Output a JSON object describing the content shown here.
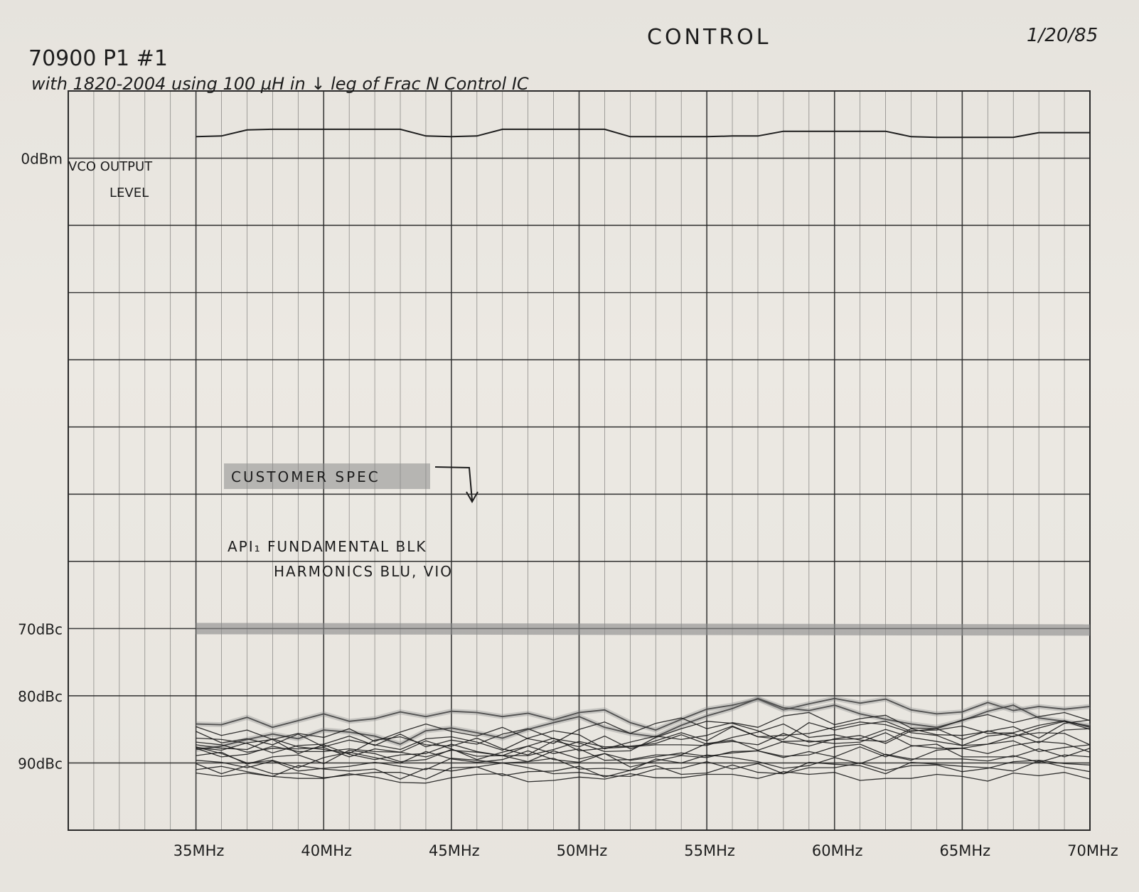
{
  "header": {
    "project": "70900 P1 #1",
    "note": "with 1820-2004 using 100 µH in ↓ leg of Frac N Control IC",
    "section": "CONTROL",
    "date": "1/20/85"
  },
  "annotations": {
    "vco_label_1": "VCO OUTPUT",
    "vco_label_2": "LEVEL",
    "spec_label": "CUSTOMER SPEC",
    "legend_1": "API₁ FUNDAMENTAL BLK",
    "legend_2": "HARMONICS BLU, VIO"
  },
  "colors": {
    "ink": "#1d1d1d",
    "grid": "#2a2a2a",
    "highlighter": "#8a8a8a",
    "paper": "#ebe8e2"
  },
  "chart_data": {
    "type": "line",
    "xlabel": "",
    "ylabel": "",
    "x": [
      35,
      36,
      37,
      38,
      39,
      40,
      41,
      42,
      43,
      44,
      45,
      46,
      47,
      48,
      49,
      50,
      51,
      52,
      53,
      54,
      55,
      56,
      57,
      58,
      59,
      60,
      61,
      62,
      63,
      64,
      65,
      66,
      67,
      68,
      69,
      70
    ],
    "xlim": [
      30,
      70
    ],
    "x_ticks": [
      {
        "value": 35,
        "label": "35MHz"
      },
      {
        "value": 40,
        "label": "40MHz"
      },
      {
        "value": 45,
        "label": "45MHz"
      },
      {
        "value": 50,
        "label": "50MHz"
      },
      {
        "value": 55,
        "label": "55MHz"
      },
      {
        "value": 60,
        "label": "60MHz"
      },
      {
        "value": 65,
        "label": "65MHz"
      },
      {
        "value": 70,
        "label": "70MHz"
      }
    ],
    "ylim": [
      -100,
      10
    ],
    "y_ticks": [
      {
        "value": 0,
        "label": "0dBm"
      },
      {
        "value": -70,
        "label": "70dBc"
      },
      {
        "value": -80,
        "label": "80dBc"
      },
      {
        "value": -90,
        "label": "90dBc"
      }
    ],
    "grid": true,
    "vco_output_level": {
      "x": [
        35,
        36,
        37,
        38,
        39,
        40,
        41,
        42,
        43,
        44,
        45,
        46,
        47,
        48,
        49,
        50,
        51,
        52,
        53,
        54,
        55,
        56,
        57,
        58,
        59,
        60,
        61,
        62,
        63,
        64,
        65,
        66,
        67,
        68,
        69,
        70
      ],
      "values": [
        3.2,
        3.3,
        4.2,
        4.3,
        4.3,
        4.3,
        4.3,
        4.3,
        4.3,
        3.3,
        3.2,
        3.3,
        4.3,
        4.3,
        4.3,
        4.3,
        4.3,
        3.2,
        3.2,
        3.2,
        3.2,
        3.3,
        3.3,
        4.0,
        4.0,
        4.0,
        4.0,
        4.0,
        3.2,
        3.1,
        3.1,
        3.1,
        3.1,
        3.8,
        3.8,
        3.8
      ]
    },
    "customer_spec": {
      "value": -70,
      "x": [
        35,
        70
      ]
    },
    "series": [
      {
        "values": [
          -84.2,
          -84.3,
          -83.2,
          -84.7,
          -83.7,
          -82.7,
          -83.8,
          -83.4,
          -82.4,
          -83.1,
          -82.3,
          -82.5,
          -83.1,
          -82.6,
          -83.6,
          -82.5,
          -82.1,
          -84.0,
          -85.1,
          -83.5,
          -82.0,
          -81.4,
          -80.5,
          -82.1,
          -81.2,
          -80.4,
          -81.1,
          -80.5,
          -82.1,
          -82.7,
          -82.4,
          -81.0,
          -82.2,
          -81.6,
          -82.0,
          -81.6
        ]
      },
      {
        "values": [
          -88.0,
          -87.5,
          -86.5,
          -85.7,
          -86.4,
          -85.1,
          -85.4,
          -86.0,
          -87.2,
          -85.2,
          -84.8,
          -85.5,
          -86.3,
          -85.0,
          -84.0,
          -83.1,
          -84.7,
          -85.6,
          -86.1,
          -84.4,
          -83.0,
          -81.9,
          -80.4,
          -81.8,
          -82.2,
          -81.4,
          -82.7,
          -83.5,
          -84.2,
          -84.7,
          -83.7,
          -82.3,
          -81.4,
          -83.3,
          -83.8,
          -84.5
        ]
      },
      {
        "values": [
          -86.3,
          -86.5,
          -87.1,
          -88.5,
          -87.4,
          -87.2,
          -86.0,
          -87.4,
          -85.7,
          -87.6,
          -86.6,
          -87.2,
          -85.7,
          -84.9,
          -86.4,
          -87.0,
          -88.3,
          -88.2,
          -86.2,
          -84.9,
          -83.8,
          -84.1,
          -85.2,
          -86.9,
          -87.5,
          -86.4,
          -85.9,
          -87.1,
          -85.2,
          -85.1,
          -84.5,
          -85.6,
          -85.5,
          -84.4,
          -83.7,
          -84.7
        ]
      },
      {
        "values": [
          -87.3,
          -87.8,
          -88.0,
          -86.4,
          -87.6,
          -88.0,
          -88.6,
          -86.6,
          -86.1,
          -87.3,
          -87.5,
          -86.3,
          -87.9,
          -88.8,
          -86.7,
          -87.6,
          -86.0,
          -87.9,
          -86.7,
          -85.5,
          -86.7,
          -84.6,
          -86.1,
          -85.9,
          -85.6,
          -84.7,
          -83.9,
          -84.3,
          -85.5,
          -85.9,
          -87.4,
          -87.2,
          -86.0,
          -85.5,
          -85.6,
          -87.3
        ]
      },
      {
        "values": [
          -87.7,
          -88.1,
          -87.0,
          -86.5,
          -88.6,
          -87.3,
          -88.7,
          -89.5,
          -88.8,
          -88.6,
          -87.2,
          -88.3,
          -88.9,
          -88.9,
          -88.0,
          -86.8,
          -87.6,
          -87.5,
          -87.1,
          -85.8,
          -87.2,
          -86.8,
          -87.3,
          -85.6,
          -86.9,
          -86.5,
          -86.4,
          -85.0,
          -86.2,
          -86.8,
          -87.4,
          -86.0,
          -85.6,
          -87.0,
          -85.1,
          -84.9
        ]
      },
      {
        "values": [
          -87.8,
          -89.1,
          -88.7,
          -87.5,
          -88.3,
          -88.3,
          -87.9,
          -88.3,
          -88.4,
          -89.1,
          -88.1,
          -88.4,
          -88.9,
          -87.5,
          -88.6,
          -87.9,
          -89.6,
          -89.5,
          -88.8,
          -88.8,
          -87.1,
          -86.6,
          -88.1,
          -86.8,
          -86.7,
          -87.1,
          -86.9,
          -85.5,
          -87.4,
          -87.8,
          -87.8,
          -87.2,
          -86.7,
          -88.3,
          -87.7,
          -87.3
        ]
      },
      {
        "values": [
          -88.9,
          -88.4,
          -90.2,
          -89.1,
          -88.8,
          -90.1,
          -88.1,
          -88.6,
          -89.8,
          -89.5,
          -88.0,
          -89.0,
          -88.9,
          -89.8,
          -88.2,
          -89.4,
          -88.6,
          -89.6,
          -89.1,
          -88.5,
          -89.0,
          -88.5,
          -88.2,
          -89.2,
          -88.3,
          -89.1,
          -87.6,
          -89.1,
          -87.5,
          -87.2,
          -89.1,
          -89.1,
          -89.1,
          -87.9,
          -89.1,
          -87.8
        ]
      },
      {
        "values": [
          -89.6,
          -89.9,
          -90.7,
          -89.7,
          -91.2,
          -90.8,
          -90.5,
          -89.9,
          -90.5,
          -91.0,
          -89.3,
          -89.6,
          -90.0,
          -89.8,
          -89.3,
          -90.9,
          -90.8,
          -91.1,
          -89.4,
          -90.0,
          -88.8,
          -89.2,
          -89.8,
          -90.8,
          -90.4,
          -89.2,
          -90.1,
          -88.7,
          -89.4,
          -89.4,
          -89.4,
          -89.7,
          -88.9,
          -89.9,
          -88.8,
          -89.1
        ]
      },
      {
        "values": [
          -91.0,
          -90.5,
          -91.3,
          -92.0,
          -90.4,
          -90.9,
          -91.2,
          -90.9,
          -92.4,
          -90.8,
          -91.2,
          -90.6,
          -90.0,
          -90.7,
          -91.6,
          -91.4,
          -91.9,
          -92.0,
          -90.9,
          -90.8,
          -89.8,
          -90.9,
          -90.1,
          -91.6,
          -89.9,
          -90.2,
          -90.4,
          -91.6,
          -89.9,
          -90.2,
          -90.5,
          -90.7,
          -91.2,
          -89.7,
          -90.6,
          -91.3
        ]
      },
      {
        "values": [
          -91.5,
          -92.0,
          -91.5,
          -92.0,
          -92.3,
          -92.3,
          -91.6,
          -92.1,
          -92.9,
          -93.0,
          -92.2,
          -91.7,
          -91.6,
          -92.8,
          -92.6,
          -92.1,
          -92.4,
          -91.6,
          -92.2,
          -92.2,
          -91.7,
          -91.7,
          -92.3,
          -91.3,
          -91.7,
          -91.4,
          -92.6,
          -92.3,
          -92.3,
          -91.7,
          -92.0,
          -92.7,
          -91.5,
          -91.9,
          -91.4,
          -92.4
        ]
      },
      {
        "values": [
          -84.6,
          -85.9,
          -85.1,
          -86.5,
          -85.6,
          -86.2,
          -84.9,
          -86.8,
          -85.4,
          -84.2,
          -85.3,
          -86.0,
          -84.7,
          -86.4,
          -87.1,
          -85.0,
          -83.9,
          -85.6,
          -84.1,
          -83.3,
          -84.9,
          -84.0,
          -84.7,
          -83.0,
          -82.5,
          -84.3,
          -83.4,
          -82.9,
          -84.8,
          -84.9,
          -83.6,
          -82.8,
          -84.0,
          -83.1,
          -82.5,
          -83.7
        ]
      },
      {
        "values": [
          -86.9,
          -87.3,
          -88.4,
          -87.8,
          -87.9,
          -87.7,
          -89.1,
          -87.9,
          -88.4,
          -86.7,
          -87.9,
          -89.5,
          -88.4,
          -87.5,
          -86.3,
          -88.2,
          -87.8,
          -87.6,
          -87.3,
          -87.3,
          -87.4,
          -86.2,
          -85.4,
          -84.2,
          -86.2,
          -85.8,
          -86.6,
          -86.8,
          -84.9,
          -85.8,
          -85.9,
          -85.3,
          -84.6,
          -86.3,
          -84.1,
          -83.6
        ]
      },
      {
        "values": [
          -87.6,
          -88.6,
          -90.0,
          -89.6,
          -90.7,
          -89.2,
          -88.4,
          -89.2,
          -90.0,
          -88.3,
          -89.4,
          -89.9,
          -89.5,
          -88.2,
          -89.5,
          -89.9,
          -88.6,
          -90.6,
          -89.7,
          -88.9,
          -89.2,
          -88.3,
          -88.2,
          -89.0,
          -88.8,
          -87.6,
          -87.2,
          -88.8,
          -89.6,
          -88.1,
          -87.8,
          -88.6,
          -87.4,
          -86.8,
          -87.1,
          -88.4
        ]
      },
      {
        "values": [
          -85.3,
          -87.0,
          -86.4,
          -87.3,
          -85.7,
          -87.6,
          -86.6,
          -87.3,
          -88.0,
          -86.4,
          -86.1,
          -86.9,
          -88.1,
          -86.3,
          -85.2,
          -85.8,
          -87.9,
          -86.9,
          -86.0,
          -86.5,
          -85.9,
          -84.5,
          -86.1,
          -86.5,
          -84.0,
          -85.1,
          -84.3,
          -83.8,
          -85.3,
          -84.9,
          -86.5,
          -85.2,
          -86.1,
          -84.8,
          -83.8,
          -85.0
        ]
      },
      {
        "values": [
          -90.1,
          -91.6,
          -90.4,
          -91.6,
          -91.5,
          -92.2,
          -91.8,
          -91.4,
          -91.4,
          -92.4,
          -90.7,
          -90.6,
          -91.9,
          -91.3,
          -91.2,
          -90.5,
          -92.1,
          -91.1,
          -90.4,
          -91.7,
          -91.5,
          -90.3,
          -91.4,
          -91.6,
          -90.7,
          -90.7,
          -90.0,
          -91.1,
          -90.4,
          -90.3,
          -91.3,
          -90.8,
          -89.8,
          -89.6,
          -90.1,
          -90.3
        ]
      }
    ]
  }
}
